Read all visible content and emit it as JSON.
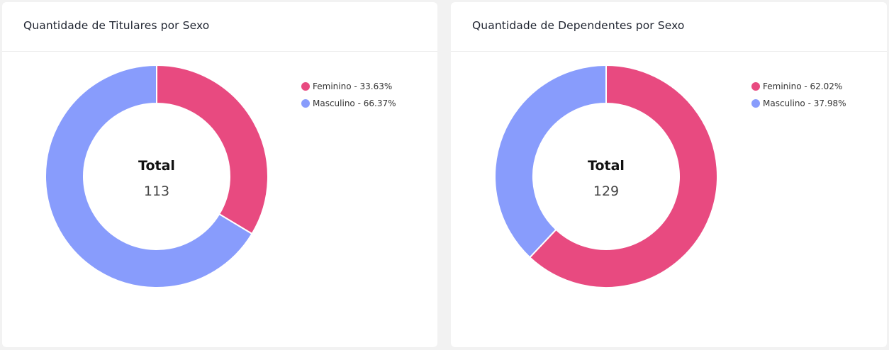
{
  "chart_data": [
    {
      "type": "pie",
      "variant": "donut",
      "title": "Quantidade de Titulares por Sexo",
      "center": {
        "label": "Total",
        "value": "113"
      },
      "slices": [
        {
          "name": "Feminino",
          "value": 33.63,
          "legend": "Feminino - 33.63%",
          "color": "#e84a80"
        },
        {
          "name": "Masculino",
          "value": 66.37,
          "legend": "Masculino - 66.37%",
          "color": "#889cfc"
        }
      ],
      "legend_position": "top-right"
    },
    {
      "type": "pie",
      "variant": "donut",
      "title": "Quantidade de Dependentes por Sexo",
      "center": {
        "label": "Total",
        "value": "129"
      },
      "slices": [
        {
          "name": "Feminino",
          "value": 62.02,
          "legend": "Feminino - 62.02%",
          "color": "#e84a80"
        },
        {
          "name": "Masculino",
          "value": 37.98,
          "legend": "Masculino - 37.98%",
          "color": "#889cfc"
        }
      ],
      "legend_position": "top-right"
    }
  ]
}
